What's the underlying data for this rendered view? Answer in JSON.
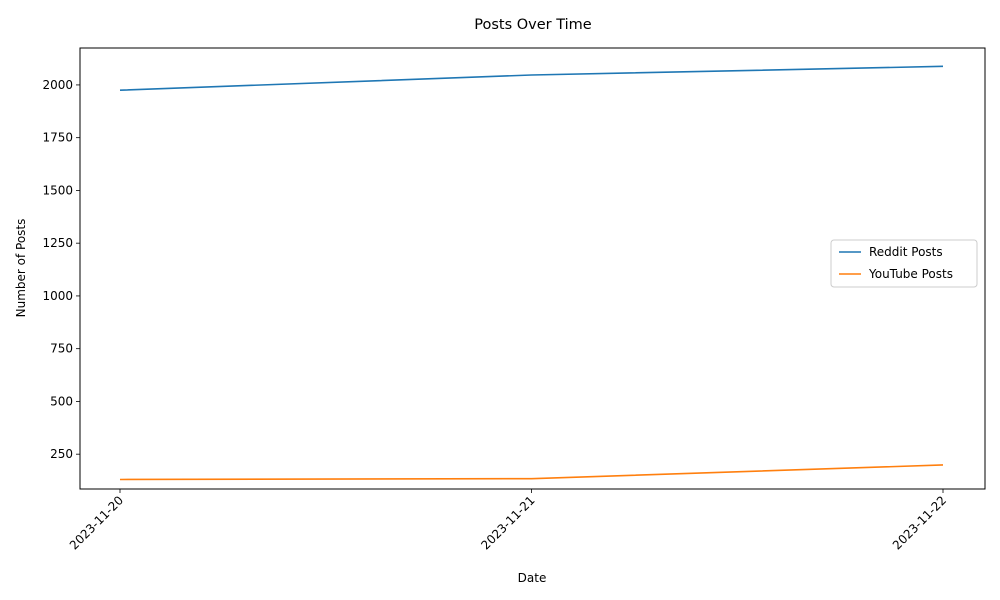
{
  "chart_data": {
    "type": "line",
    "title": "Posts Over Time",
    "xlabel": "Date",
    "ylabel": "Number of Posts",
    "categories": [
      "2023-11-20",
      "2023-11-21",
      "2023-11-22"
    ],
    "ylim": [
      85,
      2175
    ],
    "yticks": [
      250,
      500,
      750,
      1000,
      1250,
      1500,
      1750,
      2000
    ],
    "grid": false,
    "legend_position": "center-right",
    "series": [
      {
        "name": "Reddit Posts",
        "color": "#1f77b4",
        "values": [
          1975,
          2047,
          2088
        ]
      },
      {
        "name": "YouTube Posts",
        "color": "#ff7f0e",
        "values": [
          130,
          134,
          199
        ]
      }
    ]
  }
}
